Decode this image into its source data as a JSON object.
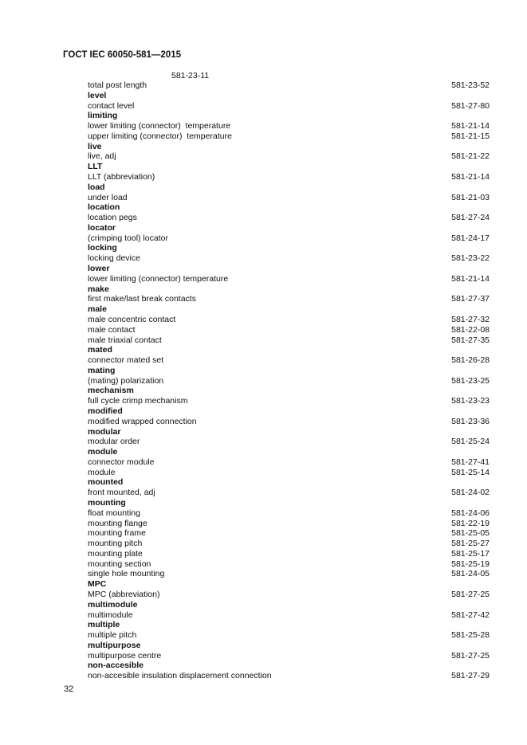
{
  "header": {
    "title": "ГОСТ IEC 60050-581—2015"
  },
  "continuation_ref": "581-23-11",
  "entries": [
    {
      "term": "total post length",
      "ref": "581-23-52"
    },
    {
      "term": "level",
      "head": true
    },
    {
      "term": "contact level",
      "ref": "581-27-80"
    },
    {
      "term": "limiting",
      "head": true
    },
    {
      "term": "lower limiting (connector)  temperature",
      "ref": "581-21-14"
    },
    {
      "term": "upper limiting (connector)  temperature",
      "ref": "581-21-15"
    },
    {
      "term": "live",
      "head": true
    },
    {
      "term": "live, adj",
      "ref": "581-21-22"
    },
    {
      "term": "LLT",
      "head": true
    },
    {
      "term": "LLT (abbreviation)",
      "ref": "581-21-14"
    },
    {
      "term": "load",
      "head": true
    },
    {
      "term": "under load",
      "ref": "581-21-03"
    },
    {
      "term": "location",
      "head": true
    },
    {
      "term": "location pegs",
      "ref": "581-27-24"
    },
    {
      "term": "locator",
      "head": true
    },
    {
      "term": "(crimping tool) locator",
      "ref": "581-24-17"
    },
    {
      "term": "locking",
      "head": true
    },
    {
      "term": "locking device",
      "ref": "581-23-22"
    },
    {
      "term": "lower",
      "head": true
    },
    {
      "term": "lower limiting (connector) temperature",
      "ref": "581-21-14"
    },
    {
      "term": "make",
      "head": true
    },
    {
      "term": "first make/last break contacts",
      "ref": "581-27-37"
    },
    {
      "term": "male",
      "head": true
    },
    {
      "term": "male concentric contact",
      "ref": "581-27-32"
    },
    {
      "term": "male contact",
      "ref": "581-22-08"
    },
    {
      "term": "male triaxial contact",
      "ref": "581-27-35"
    },
    {
      "term": "mated",
      "head": true
    },
    {
      "term": "connector mated set",
      "ref": "581-26-28"
    },
    {
      "term": "mating",
      "head": true
    },
    {
      "term": "(mating) polarization",
      "ref": "581-23-25"
    },
    {
      "term": "mechanism",
      "head": true
    },
    {
      "term": "full cycle crimp mechanism",
      "ref": "581-23-23"
    },
    {
      "term": "modified",
      "head": true
    },
    {
      "term": "modified wrapped connection",
      "ref": "581-23-36"
    },
    {
      "term": "modular",
      "head": true
    },
    {
      "term": "modular order",
      "ref": "581-25-24"
    },
    {
      "term": "module",
      "head": true
    },
    {
      "term": "connector module",
      "ref": "581-27-41"
    },
    {
      "term": "module",
      "ref": "581-25-14"
    },
    {
      "term": "mounted",
      "head": true
    },
    {
      "term": "front mounted, adj",
      "ref": "581-24-02"
    },
    {
      "term": "mounting",
      "head": true
    },
    {
      "term": "float mounting",
      "ref": "581-24-06"
    },
    {
      "term": "mounting flange",
      "ref": "581-22-19"
    },
    {
      "term": "mounting frame",
      "ref": "581-25-05"
    },
    {
      "term": "mounting pitch",
      "ref": "581-25-27"
    },
    {
      "term": "mounting plate",
      "ref": "581-25-17"
    },
    {
      "term": "mounting section",
      "ref": "581-25-19"
    },
    {
      "term": "single hole mounting",
      "ref": "581-24-05"
    },
    {
      "term": "MPC",
      "head": true
    },
    {
      "term": "MPC (abbreviation)",
      "ref": "581-27-25"
    },
    {
      "term": "multimodule",
      "head": true
    },
    {
      "term": "multimodule",
      "ref": "581-27-42"
    },
    {
      "term": "multiple",
      "head": true
    },
    {
      "term": "multiple pitch",
      "ref": "581-25-28"
    },
    {
      "term": "multipurpose",
      "head": true
    },
    {
      "term": "multipurpose centre",
      "ref": "581-27-25"
    },
    {
      "term": "non-accesible",
      "head": true
    },
    {
      "term": "non-accesible insulation displacement connection",
      "ref": "581-27-29"
    }
  ],
  "page_number": "32"
}
